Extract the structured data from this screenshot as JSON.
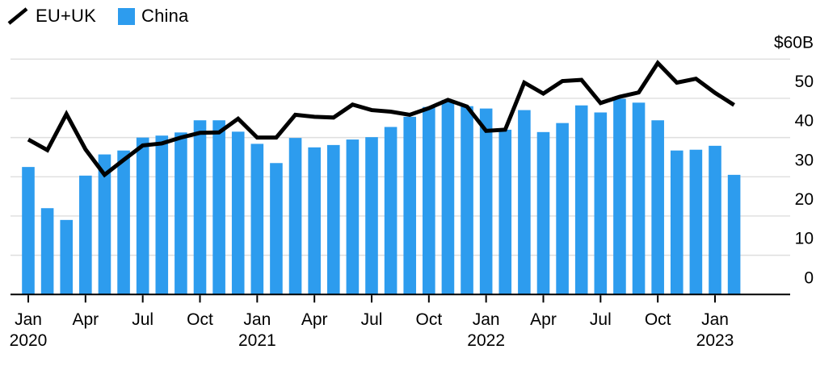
{
  "chart_data": {
    "type": "bar+line",
    "title": "",
    "categories": [
      "Jan 2020",
      "Feb 2020",
      "Mar 2020",
      "Apr 2020",
      "May 2020",
      "Jun 2020",
      "Jul 2020",
      "Aug 2020",
      "Sep 2020",
      "Oct 2020",
      "Nov 2020",
      "Dec 2020",
      "Jan 2021",
      "Feb 2021",
      "Mar 2021",
      "Apr 2021",
      "May 2021",
      "Jun 2021",
      "Jul 2021",
      "Aug 2021",
      "Sep 2021",
      "Oct 2021",
      "Nov 2021",
      "Dec 2021",
      "Jan 2022",
      "Feb 2022",
      "Mar 2022",
      "Apr 2022",
      "May 2022",
      "Jun 2022",
      "Jul 2022",
      "Aug 2022",
      "Sep 2022",
      "Oct 2022",
      "Nov 2022",
      "Dec 2022",
      "Jan 2023",
      "Feb 2023"
    ],
    "series": [
      {
        "name": "EU+UK",
        "kind": "line",
        "color": "#000000",
        "values": [
          39.5,
          36.8,
          46,
          37,
          30.5,
          34.3,
          38,
          38.5,
          40,
          41.2,
          41.3,
          44.8,
          40,
          40,
          45.8,
          45.3,
          45.1,
          48.4,
          47,
          46.6,
          45.8,
          47.5,
          49.6,
          47.9,
          41.7,
          42,
          54,
          51.2,
          54.4,
          54.7,
          48.8,
          50.4,
          51.5,
          59,
          54,
          55,
          51.4,
          48.3
        ]
      },
      {
        "name": "China",
        "kind": "bar",
        "color": "#2d9cee",
        "values": [
          32.5,
          22,
          19,
          30.3,
          35.7,
          36.7,
          40,
          40.5,
          41.3,
          44.4,
          44.4,
          41.5,
          38.4,
          33.5,
          39.9,
          37.5,
          38.1,
          39.5,
          40.1,
          42.7,
          45.3,
          47.8,
          49.6,
          48,
          47.4,
          42,
          47,
          41.4,
          43.7,
          48.2,
          46.4,
          49.9,
          48.9,
          44.4,
          36.7,
          36.9,
          37.9,
          30.5
        ]
      }
    ],
    "unit": "$B",
    "ylim": [
      0,
      60
    ],
    "y_axis": {
      "side": "right",
      "tick_values": [
        60,
        50,
        40,
        30,
        20,
        10,
        0
      ],
      "tick_labels": [
        "$60B",
        "50",
        "40",
        "30",
        "20",
        "10",
        "0"
      ]
    },
    "x_ticks": [
      {
        "month": "Jan",
        "year": "2020"
      },
      {
        "month": "Apr",
        "year": ""
      },
      {
        "month": "Jul",
        "year": ""
      },
      {
        "month": "Oct",
        "year": ""
      },
      {
        "month": "Jan",
        "year": "2021"
      },
      {
        "month": "Apr",
        "year": ""
      },
      {
        "month": "Jul",
        "year": ""
      },
      {
        "month": "Oct",
        "year": ""
      },
      {
        "month": "Jan",
        "year": "2022"
      },
      {
        "month": "Apr",
        "year": ""
      },
      {
        "month": "Jul",
        "year": ""
      },
      {
        "month": "Oct",
        "year": ""
      },
      {
        "month": "Jan",
        "year": "2023"
      }
    ],
    "grid": "horizontal",
    "legend_position": "top-left",
    "colors": {
      "grid": "#dedede",
      "axis": "#000000",
      "text": "#000000",
      "background": "#ffffff"
    }
  }
}
